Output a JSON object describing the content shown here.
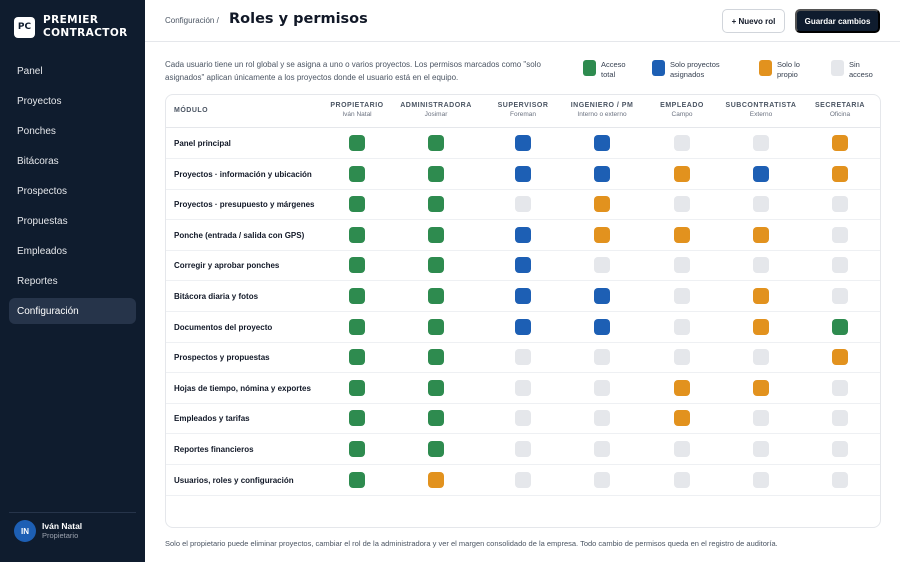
{
  "brand": {
    "logo_text": "PC",
    "line1": "PREMIER",
    "line2": "CONTRACTOR"
  },
  "sidebar": {
    "items": [
      {
        "label": "Panel"
      },
      {
        "label": "Proyectos"
      },
      {
        "label": "Ponches"
      },
      {
        "label": "Bitácoras"
      },
      {
        "label": "Prospectos"
      },
      {
        "label": "Propuestas"
      },
      {
        "label": "Empleados"
      },
      {
        "label": "Reportes"
      },
      {
        "label": "Configuración",
        "active": true
      }
    ],
    "user": {
      "initials": "IN",
      "name": "Iván Natal",
      "role": "Propietario"
    }
  },
  "header": {
    "breadcrumb": "Configuración /",
    "title": "Roles y permisos",
    "new_role_label": "+ Nuevo rol",
    "save_label": "Guardar cambios"
  },
  "intro": "Cada usuario tiene un rol global y se asigna a uno o varios proyectos. Los permisos marcados como \"solo asignados\" aplican únicamente a los proyectos donde el usuario está en el equipo.",
  "legend": {
    "total_line1": "Acceso",
    "total_line2": "total",
    "assigned_line1": "Solo proyectos",
    "assigned_line2": "asignados",
    "own_line1": "Solo lo",
    "own_line2": "propio",
    "none_line1": "Sin",
    "none_line2": "acceso"
  },
  "colors": {
    "total": "#2e8b4f",
    "assigned": "#1d5fb4",
    "own": "#e2921e",
    "none": "#e5e7eb",
    "sidebar_bg": "#0f1c2e"
  },
  "table": {
    "module_header": "MÓDULO",
    "roles": [
      {
        "name": "PROPIETARIO",
        "sub": "Iván Natal"
      },
      {
        "name": "ADMINISTRADORA",
        "sub": "Josimar"
      },
      {
        "name": "SUPERVISOR",
        "sub": "Foreman"
      },
      {
        "name": "INGENIERO / PM",
        "sub": "Interno o externo"
      },
      {
        "name": "EMPLEADO",
        "sub": "Campo"
      },
      {
        "name": "SUBCONTRATISTA",
        "sub": "Externo"
      },
      {
        "name": "SECRETARIA",
        "sub": "Oficina"
      }
    ],
    "rows": [
      {
        "label": "Panel principal",
        "access": [
          "total",
          "total",
          "assigned",
          "assigned",
          "none",
          "none",
          "own"
        ]
      },
      {
        "label": "Proyectos · información y ubicación",
        "access": [
          "total",
          "total",
          "assigned",
          "assigned",
          "own",
          "assigned",
          "own"
        ]
      },
      {
        "label": "Proyectos · presupuesto y márgenes",
        "access": [
          "total",
          "total",
          "none",
          "own",
          "none",
          "none",
          "none"
        ]
      },
      {
        "label": "Ponche (entrada / salida con GPS)",
        "access": [
          "total",
          "total",
          "assigned",
          "own",
          "own",
          "own",
          "none"
        ]
      },
      {
        "label": "Corregir y aprobar ponches",
        "access": [
          "total",
          "total",
          "assigned",
          "none",
          "none",
          "none",
          "none"
        ]
      },
      {
        "label": "Bitácora diaria y fotos",
        "access": [
          "total",
          "total",
          "assigned",
          "assigned",
          "none",
          "own",
          "none"
        ]
      },
      {
        "label": "Documentos del proyecto",
        "access": [
          "total",
          "total",
          "assigned",
          "assigned",
          "none",
          "own",
          "total"
        ]
      },
      {
        "label": "Prospectos y propuestas",
        "access": [
          "total",
          "total",
          "none",
          "none",
          "none",
          "none",
          "own"
        ]
      },
      {
        "label": "Hojas de tiempo, nómina y exportes",
        "access": [
          "total",
          "total",
          "none",
          "none",
          "own",
          "own",
          "none"
        ]
      },
      {
        "label": "Empleados y tarifas",
        "access": [
          "total",
          "total",
          "none",
          "none",
          "own",
          "none",
          "none"
        ]
      },
      {
        "label": "Reportes financieros",
        "access": [
          "total",
          "total",
          "none",
          "none",
          "none",
          "none",
          "none"
        ]
      },
      {
        "label": "Usuarios, roles y configuración",
        "access": [
          "total",
          "own",
          "none",
          "none",
          "none",
          "none",
          "none"
        ]
      }
    ]
  },
  "footnote": "Solo el propietario puede eliminar proyectos, cambiar el rol de la administradora y ver el margen consolidado de la empresa. Todo cambio de permisos queda en el registro de auditoría."
}
